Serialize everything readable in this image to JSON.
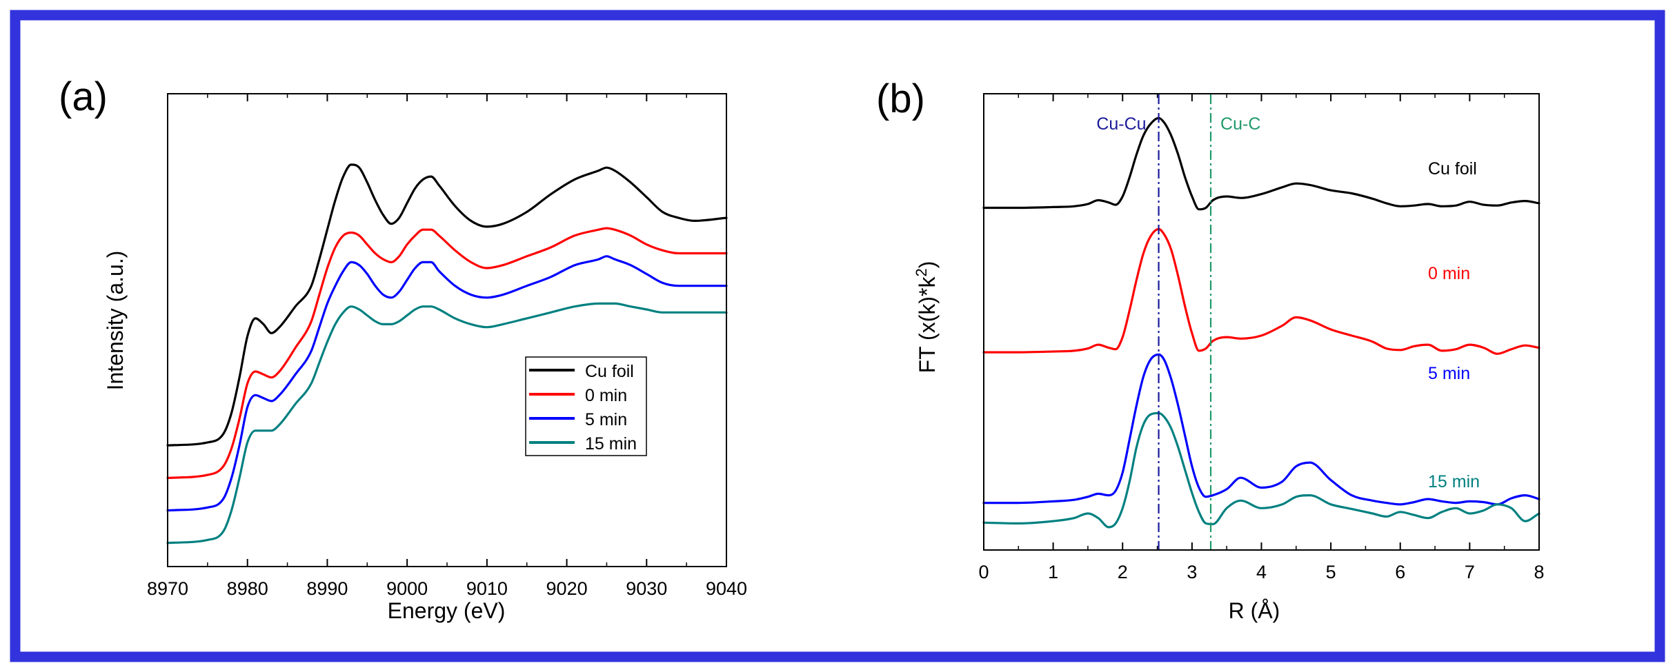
{
  "colors": {
    "frame_border": "#3333dd",
    "axis": "#000000",
    "series": [
      "#000000",
      "#ff0000",
      "#0000ff",
      "#008080"
    ],
    "ref_line_cu_cu": "#1a1a9a",
    "ref_line_cu_c": "#1f9a6a"
  },
  "chart_data": [
    {
      "type": "line",
      "panel_label": "(a)",
      "xlabel": "Energy (eV)",
      "ylabel": "Intensity (a.u.)",
      "xlim": [
        8970,
        9040
      ],
      "ylim": [
        0,
        1.6
      ],
      "x_ticks": [
        8970,
        8980,
        8990,
        9000,
        9010,
        9020,
        9030,
        9040
      ],
      "x_tick_labels": [
        "8970",
        "8980",
        "8990",
        "9000",
        "9010",
        "9020",
        "9030",
        "9040"
      ],
      "y_ticks_shown": false,
      "legend": {
        "placement": "lower-right",
        "entries": [
          "Cu foil",
          "0  min",
          "5  min",
          "15 min"
        ]
      },
      "series": [
        {
          "name": "Cu foil",
          "x": [
            8970,
            8975,
            8977,
            8978,
            8979,
            8980,
            8981,
            8982,
            8983,
            8984,
            8986,
            8988,
            8989,
            8990,
            8991,
            8992,
            8993,
            8994,
            8995,
            8996,
            8997,
            8998,
            8999,
            9000,
            9001,
            9002,
            9003,
            9004,
            9006,
            9008,
            9010,
            9012,
            9015,
            9018,
            9021,
            9024,
            9025,
            9026,
            9028,
            9030,
            9032,
            9034,
            9036,
            9040
          ],
          "y": [
            0.41,
            0.42,
            0.45,
            0.52,
            0.64,
            0.78,
            0.84,
            0.82,
            0.79,
            0.81,
            0.88,
            0.95,
            1.04,
            1.14,
            1.24,
            1.32,
            1.36,
            1.35,
            1.3,
            1.24,
            1.19,
            1.16,
            1.18,
            1.23,
            1.28,
            1.31,
            1.32,
            1.29,
            1.22,
            1.17,
            1.15,
            1.16,
            1.2,
            1.26,
            1.31,
            1.34,
            1.35,
            1.34,
            1.3,
            1.25,
            1.2,
            1.18,
            1.17,
            1.18
          ]
        },
        {
          "name": "0  min",
          "x": [
            8970,
            8975,
            8977,
            8978,
            8979,
            8980,
            8981,
            8982,
            8983,
            8984,
            8986,
            8988,
            8989,
            8990,
            8991,
            8992,
            8993,
            8994,
            8995,
            8996,
            8997,
            8998,
            8999,
            9000,
            9001,
            9002,
            9003,
            9004,
            9006,
            9008,
            9010,
            9012,
            9015,
            9018,
            9021,
            9024,
            9025,
            9026,
            9028,
            9030,
            9032,
            9034,
            9036,
            9040
          ],
          "y": [
            0.3,
            0.31,
            0.34,
            0.4,
            0.5,
            0.62,
            0.66,
            0.65,
            0.64,
            0.66,
            0.74,
            0.83,
            0.92,
            1.01,
            1.08,
            1.12,
            1.13,
            1.12,
            1.09,
            1.06,
            1.04,
            1.03,
            1.05,
            1.09,
            1.12,
            1.14,
            1.14,
            1.12,
            1.07,
            1.03,
            1.01,
            1.02,
            1.05,
            1.08,
            1.12,
            1.14,
            1.145,
            1.14,
            1.12,
            1.09,
            1.07,
            1.06,
            1.06,
            1.06
          ]
        },
        {
          "name": "5  min",
          "x": [
            8970,
            8975,
            8977,
            8978,
            8979,
            8980,
            8981,
            8982,
            8983,
            8984,
            8986,
            8988,
            8989,
            8990,
            8991,
            8992,
            8993,
            8994,
            8995,
            8996,
            8997,
            8998,
            8999,
            9000,
            9001,
            9002,
            9003,
            9004,
            9006,
            9008,
            9010,
            9012,
            9015,
            9018,
            9021,
            9024,
            9025,
            9026,
            9028,
            9030,
            9032,
            9034,
            9036,
            9040
          ],
          "y": [
            0.19,
            0.2,
            0.23,
            0.3,
            0.41,
            0.54,
            0.58,
            0.57,
            0.56,
            0.58,
            0.65,
            0.73,
            0.81,
            0.89,
            0.95,
            1.0,
            1.03,
            1.02,
            0.99,
            0.95,
            0.92,
            0.91,
            0.93,
            0.97,
            1.01,
            1.03,
            1.03,
            1.0,
            0.95,
            0.92,
            0.91,
            0.92,
            0.95,
            0.98,
            1.02,
            1.04,
            1.05,
            1.04,
            1.02,
            0.99,
            0.96,
            0.95,
            0.95,
            0.95
          ]
        },
        {
          "name": "15 min",
          "x": [
            8970,
            8975,
            8977,
            8978,
            8979,
            8980,
            8981,
            8982,
            8983,
            8984,
            8986,
            8988,
            8989,
            8990,
            8991,
            8992,
            8993,
            8994,
            8995,
            8996,
            8997,
            8998,
            8999,
            9000,
            9001,
            9002,
            9003,
            9004,
            9006,
            9008,
            9010,
            9012,
            9015,
            9018,
            9021,
            9024,
            9025,
            9026,
            9028,
            9030,
            9032,
            9034,
            9036,
            9040
          ],
          "y": [
            0.08,
            0.09,
            0.12,
            0.19,
            0.3,
            0.42,
            0.46,
            0.46,
            0.46,
            0.48,
            0.55,
            0.62,
            0.69,
            0.76,
            0.82,
            0.86,
            0.88,
            0.87,
            0.85,
            0.83,
            0.82,
            0.82,
            0.83,
            0.85,
            0.87,
            0.88,
            0.88,
            0.87,
            0.84,
            0.82,
            0.81,
            0.82,
            0.84,
            0.86,
            0.88,
            0.89,
            0.89,
            0.89,
            0.88,
            0.87,
            0.86,
            0.86,
            0.86,
            0.86
          ]
        }
      ]
    },
    {
      "type": "line",
      "panel_label": "(b)",
      "xlabel": "R (Å)",
      "ylabel_parts": [
        "FT (x(k)*k",
        "2",
        ")"
      ],
      "xlim": [
        0,
        8
      ],
      "ylim": [
        -0.6,
        5.4
      ],
      "x_ticks": [
        0,
        1,
        2,
        3,
        4,
        5,
        6,
        7,
        8
      ],
      "x_tick_labels": [
        "0",
        "1",
        "2",
        "3",
        "4",
        "5",
        "6",
        "7",
        "8"
      ],
      "y_ticks_shown": false,
      "reference_lines": [
        {
          "label": "Cu-Cu",
          "x": 2.52
        },
        {
          "label": "Cu-C",
          "x": 3.27
        }
      ],
      "series": [
        {
          "name": "Cu foil",
          "x": [
            0,
            0.5,
            1.0,
            1.3,
            1.5,
            1.65,
            1.8,
            1.9,
            2.0,
            2.1,
            2.2,
            2.3,
            2.4,
            2.52,
            2.6,
            2.7,
            2.8,
            2.9,
            3.0,
            3.1,
            3.2,
            3.3,
            3.5,
            3.7,
            4.0,
            4.3,
            4.5,
            4.7,
            5.0,
            5.3,
            5.6,
            5.8,
            6.0,
            6.2,
            6.4,
            6.6,
            6.8,
            7.0,
            7.2,
            7.4,
            7.6,
            7.8,
            8.0
          ],
          "y": [
            3.9,
            3.9,
            3.91,
            3.92,
            3.95,
            4.0,
            3.97,
            3.94,
            4.05,
            4.3,
            4.6,
            4.85,
            5.0,
            5.08,
            5.02,
            4.85,
            4.6,
            4.3,
            4.05,
            3.88,
            3.9,
            4.0,
            4.05,
            4.03,
            4.08,
            4.17,
            4.22,
            4.2,
            4.13,
            4.09,
            4.02,
            3.96,
            3.92,
            3.93,
            3.95,
            3.92,
            3.93,
            3.98,
            3.94,
            3.93,
            3.97,
            3.99,
            3.96
          ]
        },
        {
          "name": "0  min",
          "x": [
            0,
            0.5,
            1.0,
            1.3,
            1.5,
            1.65,
            1.8,
            1.9,
            2.0,
            2.1,
            2.2,
            2.3,
            2.4,
            2.52,
            2.6,
            2.7,
            2.8,
            2.9,
            3.0,
            3.1,
            3.2,
            3.3,
            3.5,
            3.7,
            4.0,
            4.3,
            4.5,
            4.7,
            5.0,
            5.3,
            5.6,
            5.8,
            6.0,
            6.2,
            6.4,
            6.6,
            6.8,
            7.0,
            7.2,
            7.4,
            7.6,
            7.8,
            8.0
          ],
          "y": [
            2.0,
            2.0,
            2.01,
            2.02,
            2.05,
            2.1,
            2.06,
            2.04,
            2.2,
            2.55,
            2.95,
            3.3,
            3.52,
            3.62,
            3.55,
            3.35,
            3.0,
            2.6,
            2.25,
            2.02,
            2.05,
            2.15,
            2.2,
            2.18,
            2.22,
            2.35,
            2.46,
            2.42,
            2.3,
            2.22,
            2.14,
            2.05,
            2.03,
            2.08,
            2.1,
            2.02,
            2.04,
            2.1,
            2.06,
            1.98,
            2.04,
            2.09,
            2.06
          ]
        },
        {
          "name": "5  min",
          "x": [
            0,
            0.5,
            1.0,
            1.3,
            1.5,
            1.65,
            1.8,
            1.9,
            2.0,
            2.1,
            2.2,
            2.3,
            2.4,
            2.52,
            2.6,
            2.7,
            2.8,
            2.9,
            3.0,
            3.1,
            3.2,
            3.3,
            3.5,
            3.7,
            4.0,
            4.3,
            4.5,
            4.7,
            5.0,
            5.3,
            5.6,
            5.8,
            6.0,
            6.2,
            6.4,
            6.6,
            6.8,
            7.0,
            7.2,
            7.4,
            7.6,
            7.8,
            8.0
          ],
          "y": [
            0.02,
            0.02,
            0.04,
            0.06,
            0.1,
            0.14,
            0.12,
            0.18,
            0.42,
            0.85,
            1.3,
            1.68,
            1.9,
            1.97,
            1.9,
            1.65,
            1.3,
            0.9,
            0.5,
            0.22,
            0.1,
            0.12,
            0.2,
            0.35,
            0.22,
            0.3,
            0.5,
            0.55,
            0.32,
            0.12,
            0.05,
            0.02,
            0.0,
            0.03,
            0.07,
            0.04,
            0.02,
            0.04,
            0.03,
            0.0,
            0.08,
            0.12,
            0.07
          ]
        },
        {
          "name": "15 min",
          "x": [
            0,
            0.5,
            1.0,
            1.3,
            1.5,
            1.65,
            1.8,
            1.9,
            2.0,
            2.1,
            2.2,
            2.3,
            2.4,
            2.52,
            2.6,
            2.7,
            2.8,
            2.9,
            3.0,
            3.1,
            3.2,
            3.3,
            3.5,
            3.7,
            4.0,
            4.3,
            4.5,
            4.7,
            5.0,
            5.3,
            5.6,
            5.8,
            6.0,
            6.2,
            6.4,
            6.6,
            6.8,
            7.0,
            7.2,
            7.4,
            7.6,
            7.8,
            8.0
          ],
          "y": [
            -0.24,
            -0.25,
            -0.22,
            -0.18,
            -0.12,
            -0.18,
            -0.3,
            -0.25,
            -0.05,
            0.3,
            0.75,
            1.05,
            1.18,
            1.2,
            1.15,
            1.0,
            0.75,
            0.45,
            0.15,
            -0.1,
            -0.25,
            -0.26,
            -0.05,
            0.05,
            -0.05,
            0.0,
            0.1,
            0.12,
            0.0,
            -0.06,
            -0.12,
            -0.16,
            -0.1,
            -0.14,
            -0.18,
            -0.1,
            -0.05,
            -0.12,
            -0.08,
            0.0,
            -0.05,
            -0.22,
            -0.12
          ]
        }
      ],
      "series_labels": [
        "Cu foil",
        "0  min",
        "5  min",
        "15 min"
      ]
    }
  ]
}
